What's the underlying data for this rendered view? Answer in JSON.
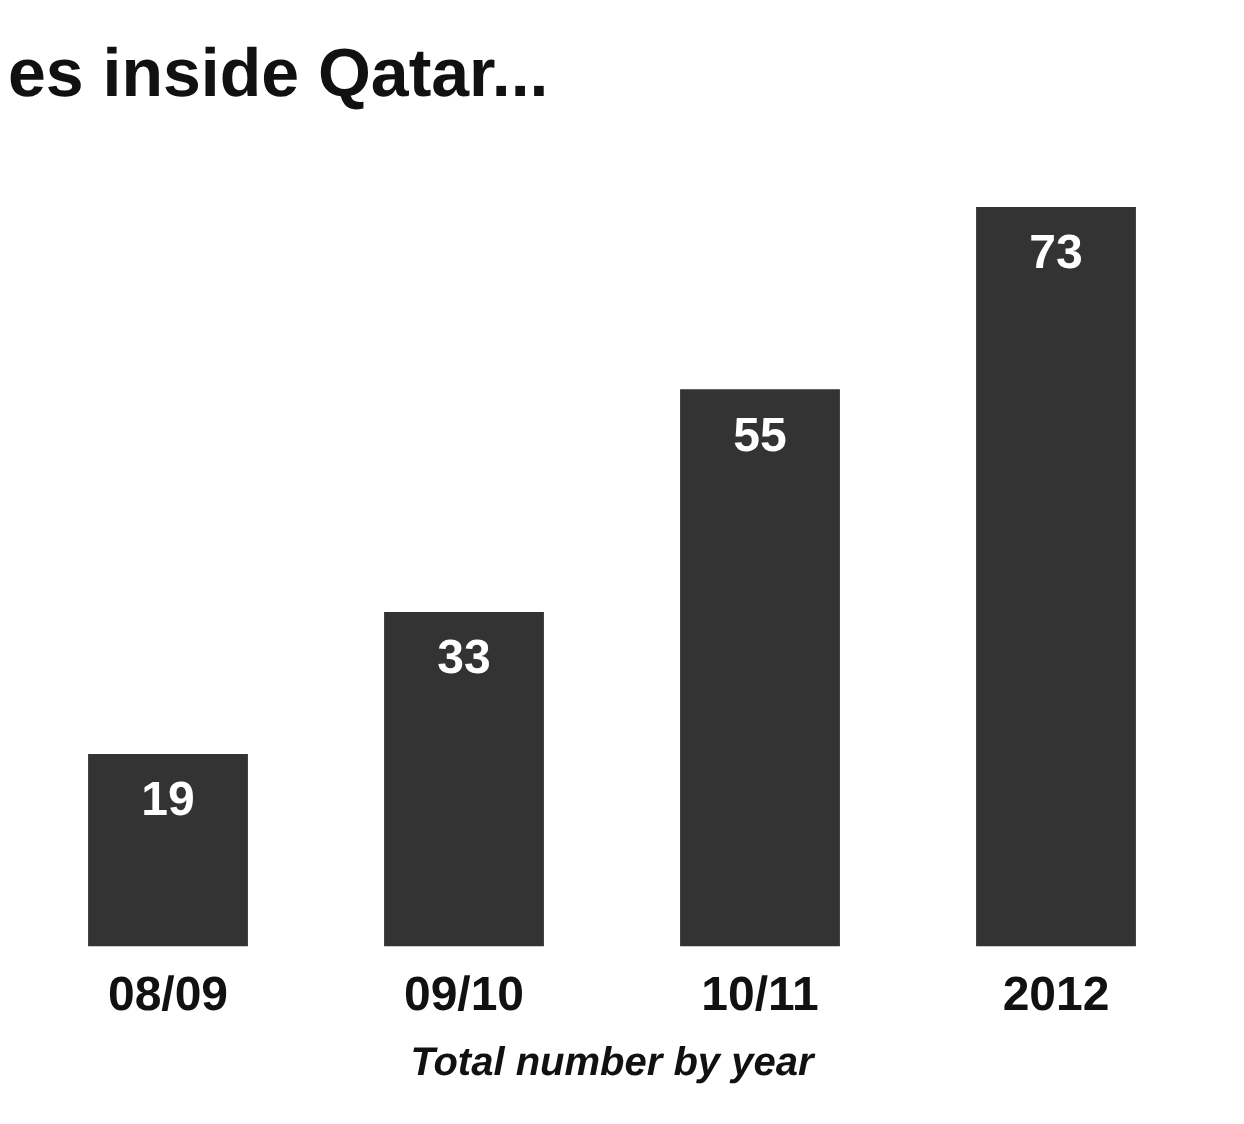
{
  "chart_data": {
    "type": "bar",
    "title": "es inside Qatar...",
    "xlabel": "Total number by year",
    "categories": [
      "08/09",
      "09/10",
      "10/11",
      "2012"
    ],
    "values": [
      19,
      33,
      55,
      73
    ],
    "color": "#333333",
    "data_labels": true,
    "grid": false,
    "legend": false
  }
}
